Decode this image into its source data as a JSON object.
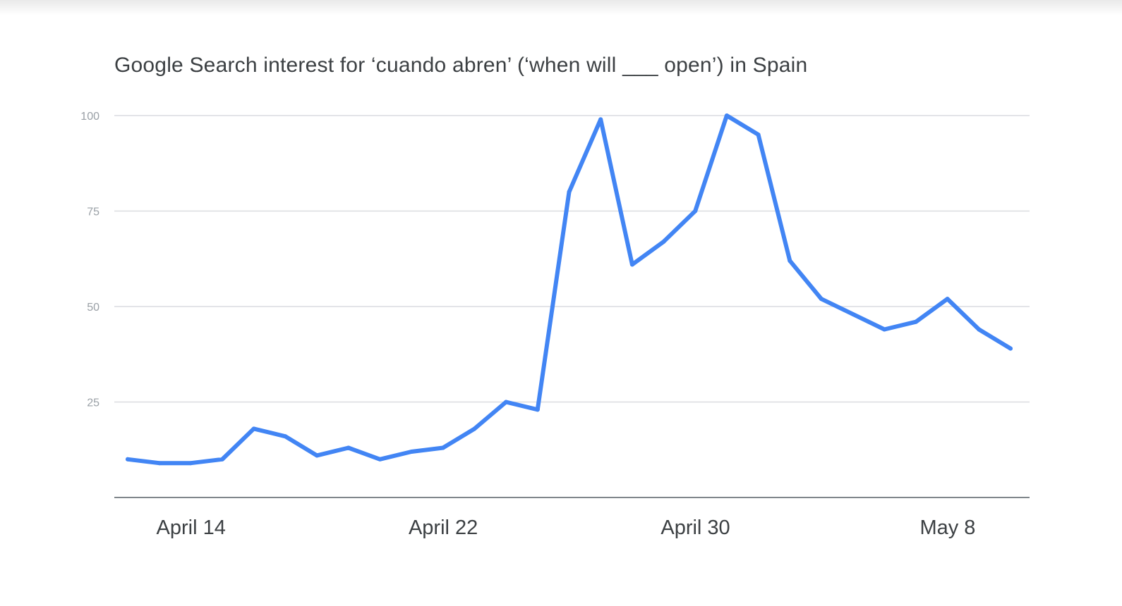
{
  "chart_data": {
    "type": "line",
    "title": "Google Search interest for ‘cuando abren’ (‘when will ___ open’) in Spain",
    "xlabel": "",
    "ylabel": "",
    "ylim": [
      0,
      100
    ],
    "y_ticks": [
      25,
      50,
      75,
      100
    ],
    "x_ticks": [
      {
        "label": "April 14",
        "index": 1
      },
      {
        "label": "April 22",
        "index": 9
      },
      {
        "label": "April 30",
        "index": 17
      },
      {
        "label": "May 8",
        "index": 25
      }
    ],
    "x": [
      "April 13",
      "April 14",
      "April 15",
      "April 16",
      "April 17",
      "April 18",
      "April 19",
      "April 20",
      "April 21",
      "April 22",
      "April 23",
      "April 24",
      "April 25",
      "April 26",
      "April 27",
      "April 28",
      "April 29",
      "April 30",
      "May 1",
      "May 2",
      "May 3",
      "May 4",
      "May 5",
      "May 6",
      "May 7",
      "May 8",
      "May 9",
      "May 10",
      "May 11"
    ],
    "series": [
      {
        "color": "#4285f4",
        "values": [
          10,
          9,
          9,
          10,
          18,
          16,
          11,
          13,
          10,
          12,
          13,
          18,
          25,
          23,
          80,
          99,
          61,
          67,
          75,
          100,
          95,
          62,
          52,
          48,
          44,
          46,
          52,
          44,
          39
        ]
      }
    ],
    "grid": true,
    "legend": "none"
  }
}
